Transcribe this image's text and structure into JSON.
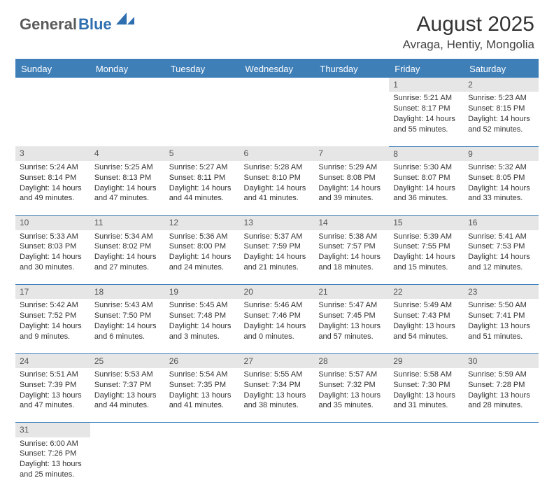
{
  "logo": {
    "text1": "General",
    "text2": "Blue"
  },
  "title": "August 2025",
  "location": "Avraga, Hentiy, Mongolia",
  "colors": {
    "header_bg": "#3f7fb8",
    "header_fg": "#ffffff",
    "daynum_bg": "#e6e6e6",
    "rule": "#3f7fb8"
  },
  "dayHeaders": [
    "Sunday",
    "Monday",
    "Tuesday",
    "Wednesday",
    "Thursday",
    "Friday",
    "Saturday"
  ],
  "weeks": [
    [
      null,
      null,
      null,
      null,
      null,
      {
        "n": "1",
        "sr": "Sunrise: 5:21 AM",
        "ss": "Sunset: 8:17 PM",
        "dl1": "Daylight: 14 hours",
        "dl2": "and 55 minutes."
      },
      {
        "n": "2",
        "sr": "Sunrise: 5:23 AM",
        "ss": "Sunset: 8:15 PM",
        "dl1": "Daylight: 14 hours",
        "dl2": "and 52 minutes."
      }
    ],
    [
      {
        "n": "3",
        "sr": "Sunrise: 5:24 AM",
        "ss": "Sunset: 8:14 PM",
        "dl1": "Daylight: 14 hours",
        "dl2": "and 49 minutes."
      },
      {
        "n": "4",
        "sr": "Sunrise: 5:25 AM",
        "ss": "Sunset: 8:13 PM",
        "dl1": "Daylight: 14 hours",
        "dl2": "and 47 minutes."
      },
      {
        "n": "5",
        "sr": "Sunrise: 5:27 AM",
        "ss": "Sunset: 8:11 PM",
        "dl1": "Daylight: 14 hours",
        "dl2": "and 44 minutes."
      },
      {
        "n": "6",
        "sr": "Sunrise: 5:28 AM",
        "ss": "Sunset: 8:10 PM",
        "dl1": "Daylight: 14 hours",
        "dl2": "and 41 minutes."
      },
      {
        "n": "7",
        "sr": "Sunrise: 5:29 AM",
        "ss": "Sunset: 8:08 PM",
        "dl1": "Daylight: 14 hours",
        "dl2": "and 39 minutes."
      },
      {
        "n": "8",
        "sr": "Sunrise: 5:30 AM",
        "ss": "Sunset: 8:07 PM",
        "dl1": "Daylight: 14 hours",
        "dl2": "and 36 minutes."
      },
      {
        "n": "9",
        "sr": "Sunrise: 5:32 AM",
        "ss": "Sunset: 8:05 PM",
        "dl1": "Daylight: 14 hours",
        "dl2": "and 33 minutes."
      }
    ],
    [
      {
        "n": "10",
        "sr": "Sunrise: 5:33 AM",
        "ss": "Sunset: 8:03 PM",
        "dl1": "Daylight: 14 hours",
        "dl2": "and 30 minutes."
      },
      {
        "n": "11",
        "sr": "Sunrise: 5:34 AM",
        "ss": "Sunset: 8:02 PM",
        "dl1": "Daylight: 14 hours",
        "dl2": "and 27 minutes."
      },
      {
        "n": "12",
        "sr": "Sunrise: 5:36 AM",
        "ss": "Sunset: 8:00 PM",
        "dl1": "Daylight: 14 hours",
        "dl2": "and 24 minutes."
      },
      {
        "n": "13",
        "sr": "Sunrise: 5:37 AM",
        "ss": "Sunset: 7:59 PM",
        "dl1": "Daylight: 14 hours",
        "dl2": "and 21 minutes."
      },
      {
        "n": "14",
        "sr": "Sunrise: 5:38 AM",
        "ss": "Sunset: 7:57 PM",
        "dl1": "Daylight: 14 hours",
        "dl2": "and 18 minutes."
      },
      {
        "n": "15",
        "sr": "Sunrise: 5:39 AM",
        "ss": "Sunset: 7:55 PM",
        "dl1": "Daylight: 14 hours",
        "dl2": "and 15 minutes."
      },
      {
        "n": "16",
        "sr": "Sunrise: 5:41 AM",
        "ss": "Sunset: 7:53 PM",
        "dl1": "Daylight: 14 hours",
        "dl2": "and 12 minutes."
      }
    ],
    [
      {
        "n": "17",
        "sr": "Sunrise: 5:42 AM",
        "ss": "Sunset: 7:52 PM",
        "dl1": "Daylight: 14 hours",
        "dl2": "and 9 minutes."
      },
      {
        "n": "18",
        "sr": "Sunrise: 5:43 AM",
        "ss": "Sunset: 7:50 PM",
        "dl1": "Daylight: 14 hours",
        "dl2": "and 6 minutes."
      },
      {
        "n": "19",
        "sr": "Sunrise: 5:45 AM",
        "ss": "Sunset: 7:48 PM",
        "dl1": "Daylight: 14 hours",
        "dl2": "and 3 minutes."
      },
      {
        "n": "20",
        "sr": "Sunrise: 5:46 AM",
        "ss": "Sunset: 7:46 PM",
        "dl1": "Daylight: 14 hours",
        "dl2": "and 0 minutes."
      },
      {
        "n": "21",
        "sr": "Sunrise: 5:47 AM",
        "ss": "Sunset: 7:45 PM",
        "dl1": "Daylight: 13 hours",
        "dl2": "and 57 minutes."
      },
      {
        "n": "22",
        "sr": "Sunrise: 5:49 AM",
        "ss": "Sunset: 7:43 PM",
        "dl1": "Daylight: 13 hours",
        "dl2": "and 54 minutes."
      },
      {
        "n": "23",
        "sr": "Sunrise: 5:50 AM",
        "ss": "Sunset: 7:41 PM",
        "dl1": "Daylight: 13 hours",
        "dl2": "and 51 minutes."
      }
    ],
    [
      {
        "n": "24",
        "sr": "Sunrise: 5:51 AM",
        "ss": "Sunset: 7:39 PM",
        "dl1": "Daylight: 13 hours",
        "dl2": "and 47 minutes."
      },
      {
        "n": "25",
        "sr": "Sunrise: 5:53 AM",
        "ss": "Sunset: 7:37 PM",
        "dl1": "Daylight: 13 hours",
        "dl2": "and 44 minutes."
      },
      {
        "n": "26",
        "sr": "Sunrise: 5:54 AM",
        "ss": "Sunset: 7:35 PM",
        "dl1": "Daylight: 13 hours",
        "dl2": "and 41 minutes."
      },
      {
        "n": "27",
        "sr": "Sunrise: 5:55 AM",
        "ss": "Sunset: 7:34 PM",
        "dl1": "Daylight: 13 hours",
        "dl2": "and 38 minutes."
      },
      {
        "n": "28",
        "sr": "Sunrise: 5:57 AM",
        "ss": "Sunset: 7:32 PM",
        "dl1": "Daylight: 13 hours",
        "dl2": "and 35 minutes."
      },
      {
        "n": "29",
        "sr": "Sunrise: 5:58 AM",
        "ss": "Sunset: 7:30 PM",
        "dl1": "Daylight: 13 hours",
        "dl2": "and 31 minutes."
      },
      {
        "n": "30",
        "sr": "Sunrise: 5:59 AM",
        "ss": "Sunset: 7:28 PM",
        "dl1": "Daylight: 13 hours",
        "dl2": "and 28 minutes."
      }
    ],
    [
      {
        "n": "31",
        "sr": "Sunrise: 6:00 AM",
        "ss": "Sunset: 7:26 PM",
        "dl1": "Daylight: 13 hours",
        "dl2": "and 25 minutes."
      },
      null,
      null,
      null,
      null,
      null,
      null
    ]
  ]
}
